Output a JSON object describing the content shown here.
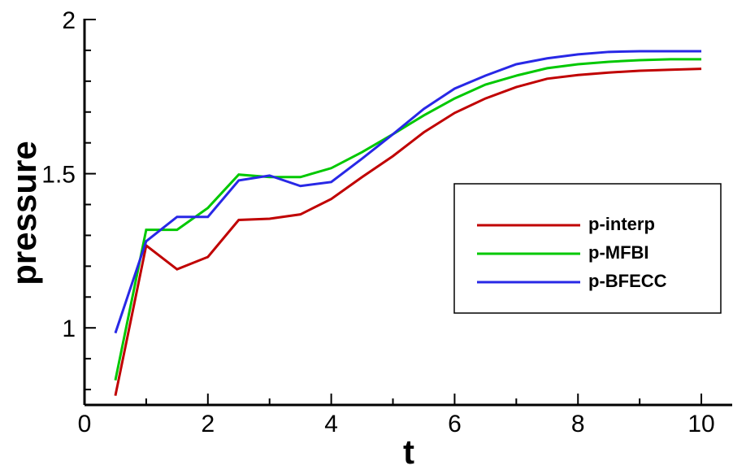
{
  "chart_data": {
    "type": "line",
    "x_label": "t",
    "y_label": "pressure",
    "x": [
      0.5,
      1,
      1.5,
      2,
      2.5,
      3,
      3.5,
      4,
      4.5,
      5,
      5.5,
      6,
      6.5,
      7,
      7.5,
      8,
      8.5,
      9,
      9.5,
      10
    ],
    "series": [
      {
        "name": "p-interp",
        "color": "#c00000",
        "values": [
          0.78,
          1.267,
          1.19,
          1.23,
          1.35,
          1.354,
          1.368,
          1.418,
          1.489,
          1.557,
          1.634,
          1.697,
          1.744,
          1.781,
          1.808,
          1.82,
          1.828,
          1.834,
          1.837,
          1.84
        ]
      },
      {
        "name": "p-MFBI",
        "color": "#00c800",
        "values": [
          0.83,
          1.318,
          1.318,
          1.389,
          1.497,
          1.489,
          1.489,
          1.518,
          1.57,
          1.628,
          1.689,
          1.744,
          1.789,
          1.818,
          1.842,
          1.855,
          1.863,
          1.868,
          1.871,
          1.871
        ]
      },
      {
        "name": "p-BFECC",
        "color": "#2828e6",
        "values": [
          0.983,
          1.281,
          1.36,
          1.36,
          1.478,
          1.494,
          1.46,
          1.473,
          1.549,
          1.628,
          1.71,
          1.776,
          1.818,
          1.855,
          1.874,
          1.887,
          1.895,
          1.897,
          1.897,
          1.897
        ]
      }
    ],
    "xlim": [
      0,
      10.5
    ],
    "ylim": [
      0.75,
      2
    ],
    "xticks": [
      0,
      2,
      4,
      6,
      8,
      10
    ],
    "yticks": [
      1,
      {
        "value": 1.5,
        "label": "1.5"
      },
      2
    ],
    "xminorticks": [
      1,
      3,
      5,
      7,
      9
    ],
    "yminorticks": [
      0.8,
      0.9,
      1.1,
      1.2,
      1.3,
      1.4,
      1.6,
      1.7,
      1.8,
      1.9
    ],
    "legend": "right"
  }
}
